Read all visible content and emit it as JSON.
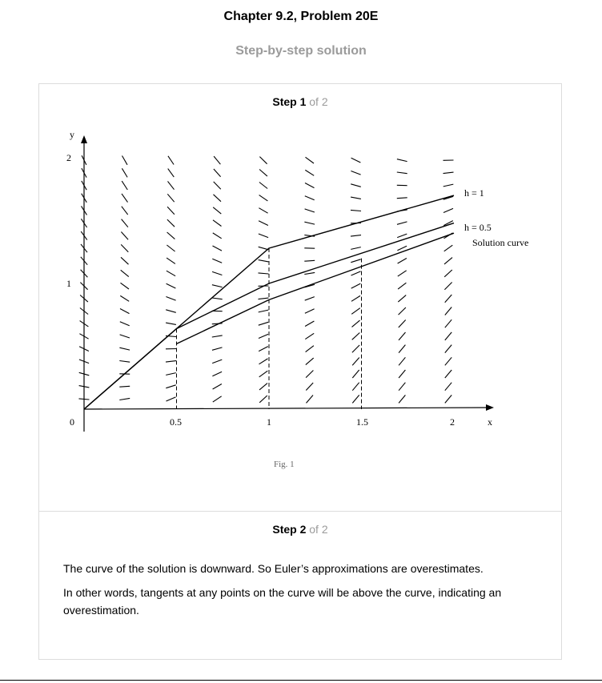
{
  "header": {
    "title": "Chapter 9.2, Problem 20E",
    "subtitle": "Step-by-step solution"
  },
  "step1": {
    "label": "Step 1",
    "of": "of 2",
    "figure": {
      "y_axis_label": "y",
      "x_axis_label": "x",
      "origin_label": "0",
      "y_ticks": [
        "1",
        "2"
      ],
      "x_ticks": [
        "0.5",
        "1",
        "1.5",
        "2"
      ],
      "curve_labels": [
        "h = 1",
        "h = 0.5",
        "Solution curve"
      ],
      "caption": "Fig. 1"
    }
  },
  "step2": {
    "label": "Step 2",
    "of": "of 2",
    "paragraphs": [
      "The curve of the solution is downward. So Euler’s approximations are overestimates.",
      "In other words, tangents at any points on the curve will be above the curve, indicating an overestimation."
    ]
  },
  "chart_data": {
    "type": "line",
    "x_range": [
      0,
      2
    ],
    "y_range": [
      0,
      2
    ],
    "series": [
      {
        "name": "h = 1",
        "x": [
          0,
          1,
          2
        ],
        "y": [
          0,
          1.28,
          1.7
        ]
      },
      {
        "name": "h = 0.5",
        "x": [
          0,
          0.5,
          1,
          2
        ],
        "y": [
          0,
          0.64,
          1.0,
          1.48
        ]
      },
      {
        "name": "Solution curve",
        "x": [
          0.5,
          1,
          2
        ],
        "y": [
          0.52,
          0.87,
          1.4
        ]
      }
    ],
    "dashed_guides_x": [
      0.5,
      1,
      1.5
    ],
    "direction_field": true
  }
}
